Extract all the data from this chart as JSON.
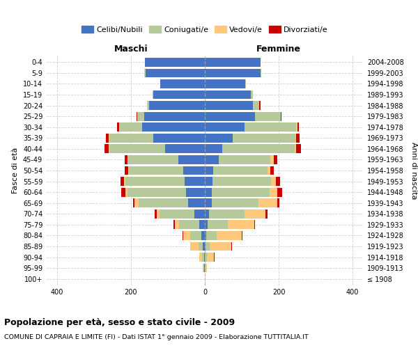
{
  "age_groups": [
    "100+",
    "95-99",
    "90-94",
    "85-89",
    "80-84",
    "75-79",
    "70-74",
    "65-69",
    "60-64",
    "55-59",
    "50-54",
    "45-49",
    "40-44",
    "35-39",
    "30-34",
    "25-29",
    "20-24",
    "15-19",
    "10-14",
    "5-9",
    "0-4"
  ],
  "birth_years": [
    "≤ 1908",
    "1909-1913",
    "1914-1918",
    "1919-1923",
    "1924-1928",
    "1929-1933",
    "1934-1938",
    "1939-1943",
    "1944-1948",
    "1949-1953",
    "1954-1958",
    "1959-1963",
    "1964-1968",
    "1969-1973",
    "1974-1978",
    "1979-1983",
    "1984-1988",
    "1989-1993",
    "1994-1998",
    "1999-2003",
    "2004-2008"
  ],
  "maschi": {
    "celibi": [
      0,
      1,
      2,
      5,
      10,
      15,
      28,
      45,
      50,
      55,
      58,
      72,
      108,
      140,
      170,
      165,
      150,
      140,
      120,
      160,
      162
    ],
    "coniugati": [
      0,
      2,
      5,
      12,
      30,
      55,
      95,
      135,
      160,
      160,
      148,
      135,
      150,
      118,
      60,
      18,
      5,
      2,
      0,
      2,
      0
    ],
    "vedovi": [
      0,
      2,
      8,
      22,
      18,
      12,
      8,
      10,
      5,
      3,
      2,
      2,
      3,
      2,
      2,
      0,
      2,
      0,
      0,
      2,
      0
    ],
    "divorziati": [
      0,
      0,
      0,
      0,
      2,
      2,
      5,
      5,
      12,
      10,
      8,
      8,
      10,
      8,
      5,
      2,
      0,
      0,
      0,
      0,
      0
    ]
  },
  "femmine": {
    "nubili": [
      0,
      0,
      0,
      2,
      4,
      7,
      12,
      18,
      18,
      20,
      22,
      38,
      48,
      75,
      108,
      135,
      130,
      125,
      110,
      150,
      150
    ],
    "coniugate": [
      0,
      2,
      5,
      12,
      28,
      55,
      95,
      128,
      158,
      160,
      148,
      140,
      195,
      170,
      140,
      70,
      18,
      5,
      2,
      2,
      0
    ],
    "vedove": [
      0,
      4,
      20,
      58,
      68,
      72,
      58,
      50,
      20,
      12,
      8,
      8,
      5,
      2,
      2,
      0,
      0,
      0,
      0,
      0,
      0
    ],
    "divorziate": [
      0,
      0,
      2,
      2,
      2,
      2,
      5,
      5,
      14,
      12,
      8,
      10,
      12,
      10,
      5,
      2,
      2,
      0,
      0,
      0,
      0
    ]
  },
  "colors": {
    "celibi": "#4472c4",
    "coniugati": "#b5c99a",
    "vedovi": "#ffc87a",
    "divorziati": "#cc0000"
  },
  "xlim": [
    -430,
    430
  ],
  "xticks": [
    -400,
    -200,
    0,
    200,
    400
  ],
  "xticklabels": [
    "400",
    "200",
    "0",
    "200",
    "400"
  ],
  "title1": "Popolazione per età, sesso e stato civile - 2009",
  "title2": "COMUNE DI CAPRAIA E LIMITE (FI) - Dati ISTAT 1° gennaio 2009 - Elaborazione TUTTITALIA.IT",
  "legend_labels": [
    "Celibi/Nubili",
    "Coniugati/e",
    "Vedovi/e",
    "Divorziati/e"
  ],
  "maschi_label": "Maschi",
  "femmine_label": "Femmine",
  "ylabel": "Fasce di età",
  "ylabel_right": "Anni di nascita",
  "bg_color": "#ffffff",
  "grid_color": "#cccccc"
}
